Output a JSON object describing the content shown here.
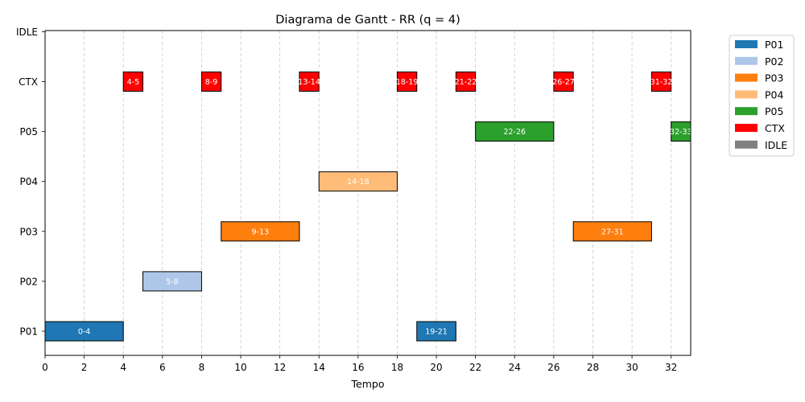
{
  "chart_data": {
    "type": "gantt",
    "title": "Diagrama de Gantt - RR (q = 4)",
    "xlabel": "Tempo",
    "ylabel": "",
    "xlim": [
      0,
      33
    ],
    "xticks": [
      0,
      2,
      4,
      6,
      8,
      10,
      12,
      14,
      16,
      18,
      20,
      22,
      24,
      26,
      28,
      30,
      32
    ],
    "categories": [
      "P01",
      "P02",
      "P03",
      "P04",
      "P05",
      "CTX",
      "IDLE"
    ],
    "grid": "vertical dashed",
    "legend_position": "outside-top-right",
    "colors": {
      "P01": "#1f77b4",
      "P02": "#aec7e8",
      "P03": "#ff7f0e",
      "P04": "#ffbb78",
      "P05": "#2ca02c",
      "CTX": "#ff0000",
      "IDLE": "#808080"
    },
    "legend": [
      "P01",
      "P02",
      "P03",
      "P04",
      "P05",
      "CTX",
      "IDLE"
    ],
    "bars": [
      {
        "row": "P01",
        "start": 0,
        "end": 4,
        "label": "0-4"
      },
      {
        "row": "CTX",
        "start": 4,
        "end": 5,
        "label": "4-5"
      },
      {
        "row": "P02",
        "start": 5,
        "end": 8,
        "label": "5-8"
      },
      {
        "row": "CTX",
        "start": 8,
        "end": 9,
        "label": "8-9"
      },
      {
        "row": "P03",
        "start": 9,
        "end": 13,
        "label": "9-13"
      },
      {
        "row": "CTX",
        "start": 13,
        "end": 14,
        "label": "13-14"
      },
      {
        "row": "P04",
        "start": 14,
        "end": 18,
        "label": "14-18"
      },
      {
        "row": "CTX",
        "start": 18,
        "end": 19,
        "label": "18-19"
      },
      {
        "row": "P01",
        "start": 19,
        "end": 21,
        "label": "19-21"
      },
      {
        "row": "CTX",
        "start": 21,
        "end": 22,
        "label": "21-22"
      },
      {
        "row": "P05",
        "start": 22,
        "end": 26,
        "label": "22-26"
      },
      {
        "row": "CTX",
        "start": 26,
        "end": 27,
        "label": "26-27"
      },
      {
        "row": "P03",
        "start": 27,
        "end": 31,
        "label": "27-31"
      },
      {
        "row": "CTX",
        "start": 31,
        "end": 32,
        "label": "31-32"
      },
      {
        "row": "P05",
        "start": 32,
        "end": 33,
        "label": "32-33"
      }
    ]
  }
}
